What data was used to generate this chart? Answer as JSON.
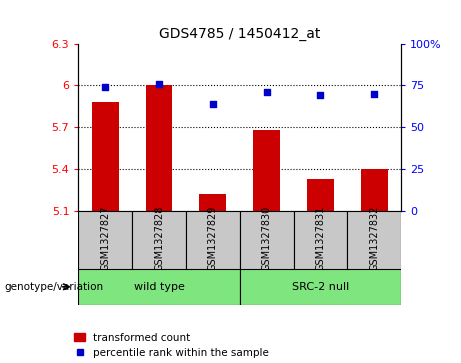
{
  "title": "GDS4785 / 1450412_at",
  "samples": [
    "GSM1327827",
    "GSM1327828",
    "GSM1327829",
    "GSM1327830",
    "GSM1327831",
    "GSM1327832"
  ],
  "bar_values": [
    5.88,
    6.0,
    5.22,
    5.68,
    5.33,
    5.4
  ],
  "scatter_percentile": [
    74,
    76,
    64,
    71,
    69,
    70
  ],
  "ylim_left": [
    5.1,
    6.3
  ],
  "ylim_right": [
    0,
    100
  ],
  "yticks_left": [
    5.1,
    5.4,
    5.7,
    6.0,
    6.3
  ],
  "ytick_labels_left": [
    "5.1",
    "5.4",
    "5.7",
    "6",
    "6.3"
  ],
  "yticks_right": [
    0,
    25,
    50,
    75,
    100
  ],
  "ytick_labels_right": [
    "0",
    "25",
    "50",
    "75",
    "100%"
  ],
  "group1_label": "wild type",
  "group2_label": "SRC-2 null",
  "group1_color": "#7FE57F",
  "group2_color": "#7FE57F",
  "bar_color": "#CC0000",
  "scatter_color": "#0000CC",
  "bg_color": "#C8C8C8",
  "legend_red_label": "transformed count",
  "legend_blue_label": "percentile rank within the sample",
  "genotype_label": "genotype/variation"
}
